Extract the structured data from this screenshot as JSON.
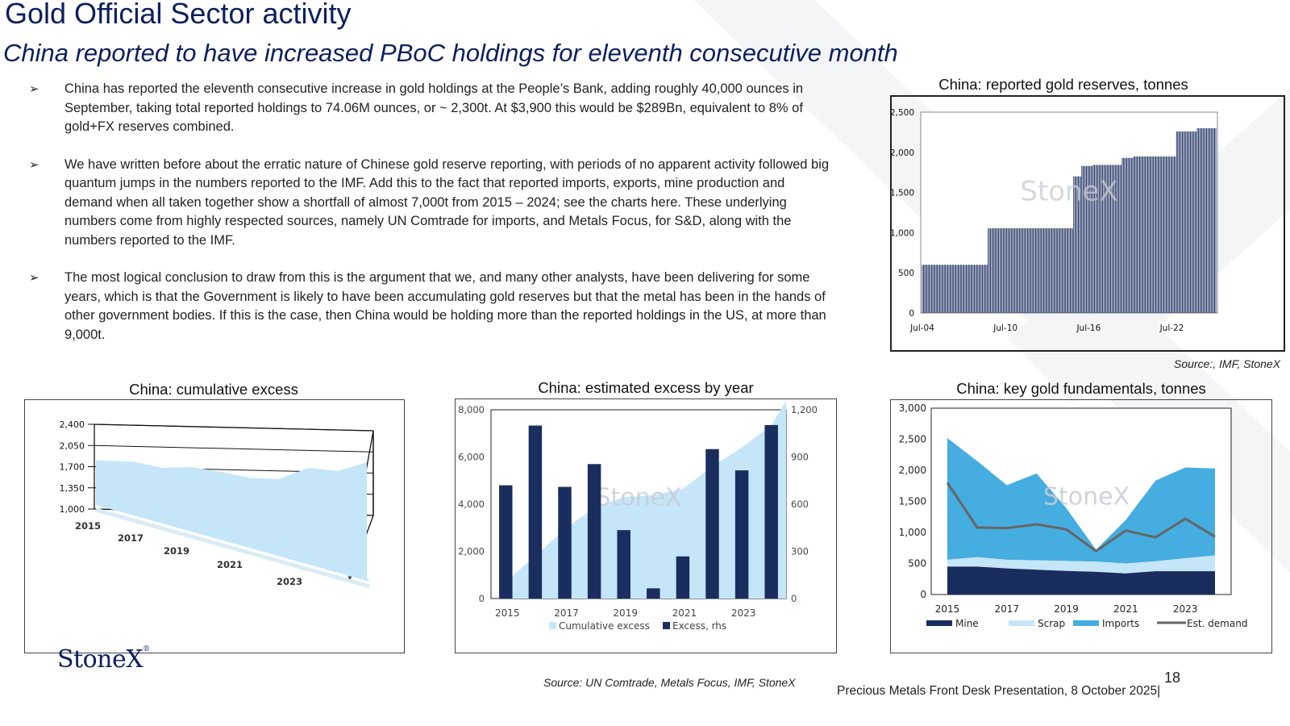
{
  "header": {
    "title": "Gold Official Sector activity",
    "subtitle": "China reported to have increased PBoC holdings for eleventh consecutive month"
  },
  "bullets": [
    "China has reported the eleventh consecutive increase in gold holdings at the People’s Bank, adding roughly 40,000 ounces in September, taking total reported holdings to 74.06M ounces, or ~ 2,300t.  At $3,900 this would be $289Bn, equivalent to 8% of gold+FX reserves combined.",
    "We have written before about the erratic nature of Chinese gold reserve reporting, with periods of no apparent activity followed big quantum jumps in the numbers reported to the IMF.  Add this to the fact that reported imports, exports, mine production and demand when all taken together show a shortfall of almost 7,000t from 2015 – 2024; see the charts here. These underlying numbers come from highly respected sources, namely UN Comtrade for imports, and Metals Focus, for S&D, along with the numbers reported to the IMF.",
    "The most logical conclusion to draw from this is the argument that we, and many other analysts, have been delivering for some years, which is that the Government is likely to have been accumulating gold reserves but that the metal has been in the hands of other government bodies.   If this is the case, then China would be holding more than the reported holdings in the US, at more than 9,000t."
  ],
  "bullet_marker": "➢",
  "sources": {
    "top_right": "Source:, IMF, StoneX",
    "bottom": "Source:  UN Comtrade, Metals Focus, IMF, StoneX"
  },
  "brand": {
    "logo_text": "StoneX",
    "logo_mark": "®",
    "watermark": "StoneX"
  },
  "footer": {
    "page_number": "18",
    "text": "Precious Metals Front Desk Presentation, 8 October 2025|"
  },
  "colors": {
    "navy": "#1a2d5f",
    "light_blue": "#c5e6f8",
    "mid_blue": "#45ade0",
    "grey": "#666666",
    "title": "#0d1f5c"
  },
  "chart_data": [
    {
      "id": "reserves",
      "type": "bar",
      "title": "China: reported gold reserves, tonnes",
      "xlabel": "",
      "ylabel": "",
      "y_ticks": [
        "0",
        "500",
        "1,000",
        "1,500",
        "2,000",
        "2,500"
      ],
      "ylim": [
        0,
        2500
      ],
      "x_ticks": [
        "Jul-04",
        "Jul-10",
        "Jul-16",
        "Jul-22"
      ],
      "step_segments": [
        {
          "from": "2004-07",
          "to": "2009-03",
          "value": 600
        },
        {
          "from": "2009-04",
          "to": "2015-05",
          "value": 1054
        },
        {
          "from": "2015-06",
          "to": "2015-12",
          "value": 1700
        },
        {
          "from": "2016-01",
          "to": "2016-10",
          "value": 1830
        },
        {
          "from": "2016-11",
          "to": "2018-11",
          "value": 1843
        },
        {
          "from": "2018-12",
          "to": "2019-09",
          "value": 1930
        },
        {
          "from": "2019-10",
          "to": "2022-10",
          "value": 1948
        },
        {
          "from": "2022-11",
          "to": "2024-04",
          "value": 2260
        },
        {
          "from": "2024-05",
          "to": "2025-09",
          "value": 2300
        }
      ]
    },
    {
      "id": "cumulative",
      "type": "area",
      "title": "China: cumulative excess",
      "y_ticks": [
        "1,000",
        "1,350",
        "1,700",
        "2,050",
        "2,400"
      ],
      "ylim": [
        1000,
        2400
      ],
      "categories": [
        "2015",
        "2016",
        "2017",
        "2018",
        "2019",
        "2020",
        "2021",
        "2022",
        "2023",
        "2024"
      ],
      "x_labels": [
        "2015",
        "2017",
        "2019",
        "2021",
        "2023"
      ],
      "values": [
        1800,
        1790,
        1700,
        1720,
        1650,
        1560,
        1550,
        1740,
        1700,
        1850
      ]
    },
    {
      "id": "excess",
      "type": "bar",
      "title": "China: estimated excess by year",
      "y_ticks_left": [
        "0",
        "2,000",
        "4,000",
        "6,000",
        "8,000"
      ],
      "y_ticks_right": [
        "0",
        "300",
        "600",
        "900",
        "1,200"
      ],
      "ylim_left": [
        0,
        8000
      ],
      "ylim_right": [
        0,
        1200
      ],
      "categories": [
        "2015",
        "2016",
        "2017",
        "2018",
        "2019",
        "2020",
        "2021",
        "2022",
        "2023",
        "2024"
      ],
      "x_labels": [
        "2015",
        "2017",
        "2019",
        "2021",
        "2023"
      ],
      "series": [
        {
          "name": "Cumulative excess",
          "type": "area",
          "axis": "left",
          "values": [
            720,
            1800,
            2950,
            3850,
            4300,
            4380,
            4650,
            5600,
            6400,
            7350
          ]
        },
        {
          "name": "Excess, rhs",
          "type": "bar",
          "axis": "right",
          "values": [
            720,
            1100,
            710,
            855,
            435,
            65,
            268,
            950,
            815,
            1103
          ]
        }
      ]
    },
    {
      "id": "fundamentals",
      "type": "area",
      "title": "China: key gold fundamentals, tonnes",
      "y_ticks": [
        "0",
        "500",
        "1,000",
        "1,500",
        "2,000",
        "2,500",
        "3,000"
      ],
      "ylim": [
        0,
        3000
      ],
      "categories": [
        "2015",
        "2016",
        "2017",
        "2018",
        "2019",
        "2020",
        "2021",
        "2022",
        "2023",
        "2024"
      ],
      "x_labels": [
        "2015",
        "2017",
        "2019",
        "2021",
        "2023"
      ],
      "series": [
        {
          "name": "Mine",
          "type": "area",
          "values": [
            450,
            450,
            420,
            400,
            380,
            365,
            340,
            375,
            375,
            375
          ]
        },
        {
          "name": "Scrap",
          "type": "area",
          "values": [
            110,
            150,
            140,
            150,
            160,
            165,
            160,
            160,
            210,
            255
          ]
        },
        {
          "name": "Imports",
          "type": "area",
          "values": [
            1960,
            1550,
            1200,
            1400,
            850,
            190,
            700,
            1300,
            1460,
            1400
          ]
        },
        {
          "name": "Est. demand",
          "type": "line",
          "values": [
            1800,
            1080,
            1070,
            1130,
            1050,
            700,
            1030,
            920,
            1220,
            930
          ]
        }
      ]
    }
  ]
}
